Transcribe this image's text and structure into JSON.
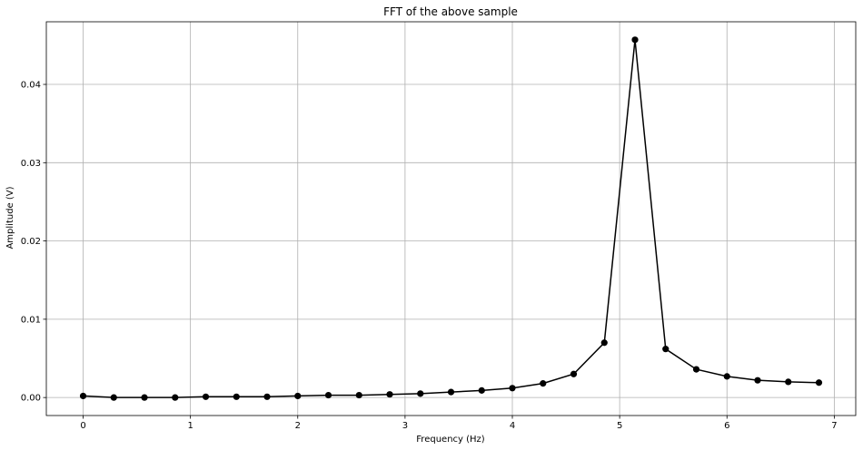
{
  "chart_data": {
    "type": "line",
    "title": "FFT of the above sample",
    "xlabel": "Frequency (Hz)",
    "ylabel": "Amplitude (V)",
    "xlim": [
      -0.343,
      7.2
    ],
    "ylim": [
      -0.0023,
      0.048
    ],
    "xticks": [
      0,
      1,
      2,
      3,
      4,
      5,
      6,
      7
    ],
    "xtick_labels": [
      "0",
      "1",
      "2",
      "3",
      "4",
      "5",
      "6",
      "7"
    ],
    "yticks": [
      0,
      0.01,
      0.02,
      0.03,
      0.04
    ],
    "ytick_labels": [
      "0.00",
      "0.01",
      "0.02",
      "0.03",
      "0.04"
    ],
    "grid": true,
    "marker": "circle",
    "color": "#000000",
    "x": [
      0,
      0.2857,
      0.5714,
      0.8571,
      1.1429,
      1.4286,
      1.7143,
      2.0,
      2.2857,
      2.5714,
      2.8571,
      3.1429,
      3.4286,
      3.7143,
      4.0,
      4.2857,
      4.5714,
      4.8571,
      5.1429,
      5.4286,
      5.7143,
      6.0,
      6.2857,
      6.5714,
      6.8571
    ],
    "y": [
      0.0002,
      0.0,
      0.0,
      0.0,
      0.0001,
      0.0001,
      0.0001,
      0.0002,
      0.0003,
      0.0003,
      0.0004,
      0.0005,
      0.0007,
      0.0009,
      0.0012,
      0.0018,
      0.003,
      0.007,
      0.0457,
      0.0062,
      0.0036,
      0.0027,
      0.0022,
      0.002,
      0.0019
    ]
  }
}
